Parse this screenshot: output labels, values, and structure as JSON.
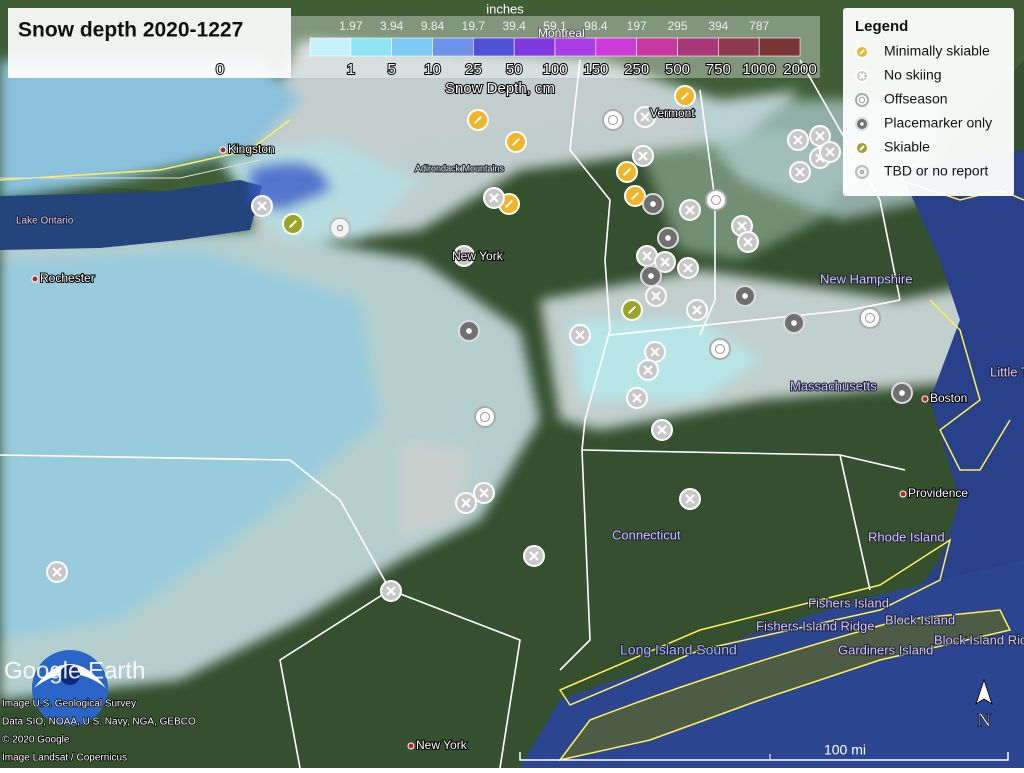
{
  "header": {
    "title": "Snow depth 2020-1227"
  },
  "color_scale": {
    "inches_label": "inches",
    "inches": [
      1.97,
      3.94,
      9.84,
      19.7,
      39.4,
      59.1,
      98.4,
      197,
      295,
      394,
      787
    ],
    "cm": [
      0,
      1,
      5,
      10,
      25,
      50,
      100,
      150,
      250,
      500,
      750,
      1000,
      2000
    ],
    "cm_label": "Snow Depth, cm"
  },
  "legend": {
    "title": "Legend",
    "items": [
      "Minimally skiable",
      "No skiing",
      "Offseason",
      "Placemarker only",
      "Skiable",
      "TBD or no report"
    ]
  },
  "places": [
    "Kingston",
    "Lake Ontario",
    "Rochester",
    "Adirondack Mountains",
    "New York",
    "Montreal",
    "Vermont",
    "New Hampshire",
    "Massachusetts",
    "Boston",
    "Providence",
    "Connecticut",
    "Rhode Island",
    "Fishers Island",
    "Fishers Island Ridge",
    "Block Island",
    "Block Island Ridge",
    "Gardiners Island",
    "Long Island Sound",
    "New York",
    "Little T"
  ],
  "credits": [
    "Image U.S. Geological Survey",
    "Data SIO, NOAA, U.S. Navy, NGA, GEBCO",
    "© 2020 Google",
    "Image Landsat / Copernicus"
  ],
  "brand": "Google Earth",
  "scale_bar": "100 mi",
  "compass": "N"
}
